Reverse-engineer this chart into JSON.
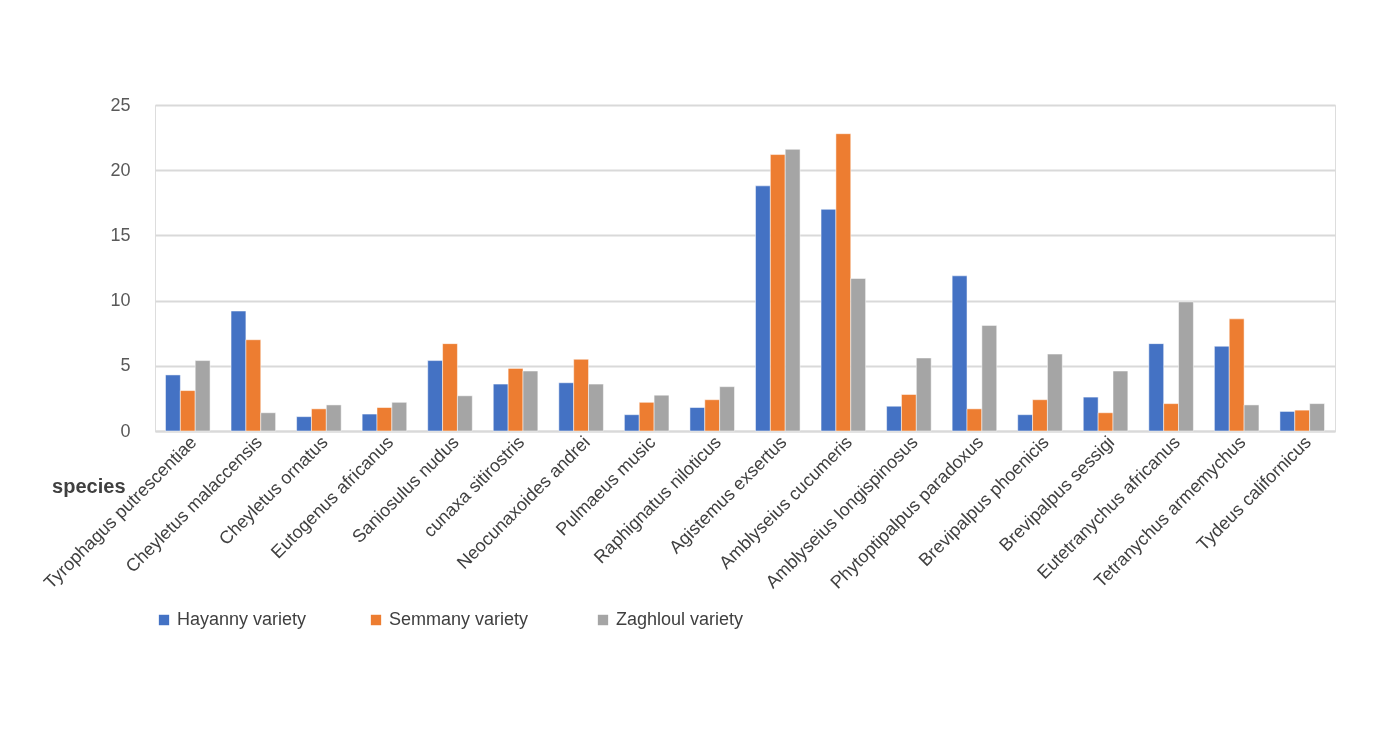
{
  "chart_data": {
    "type": "bar",
    "xlabel": "species",
    "categories": [
      "Tyrophagus putrescentiae",
      "Cheyletus malaccensis",
      "Cheyletus ornatus",
      "Eutogenus africanus",
      "Saniosulus nudus",
      "cunaxa sitirostris",
      "Neocunaxoides andrei",
      "Pulmaeus music",
      "Raphignatus niloticus",
      "Agistemus exsertus",
      "Amblyseius cucumeris",
      "Amblyseius longispinosus",
      "Phytoptipalpus paradoxus",
      "Brevipalpus phoenicis",
      "Brevipalpus sessigi",
      "Eutetranychus africanus",
      "Tetranychus armemychus",
      "Tydeus californicus"
    ],
    "series": [
      {
        "name": "Hayanny variety",
        "color": "#4472c4",
        "values": [
          4.3,
          9.2,
          1.1,
          1.3,
          5.4,
          3.6,
          3.7,
          1.25,
          1.8,
          18.8,
          17.0,
          1.9,
          11.9,
          1.25,
          2.6,
          6.7,
          6.5,
          1.5
        ]
      },
      {
        "name": "Semmany  variety",
        "color": "#ed7d31",
        "values": [
          3.1,
          7.0,
          1.7,
          1.8,
          6.7,
          4.8,
          5.5,
          2.2,
          2.4,
          21.2,
          22.8,
          2.8,
          1.7,
          2.4,
          1.4,
          2.1,
          8.6,
          1.6
        ]
      },
      {
        "name": "Zaghloul  variety",
        "color": "#a5a5a5",
        "values": [
          5.4,
          1.4,
          2.0,
          2.2,
          2.7,
          4.6,
          3.6,
          2.75,
          3.4,
          21.6,
          11.7,
          5.6,
          8.1,
          5.9,
          4.6,
          9.9,
          2.0,
          2.1
        ]
      }
    ],
    "ylim": [
      0,
      25
    ],
    "yticks": [
      0,
      5,
      10,
      15,
      20,
      25
    ],
    "grid": "y",
    "legend": "bottom"
  }
}
